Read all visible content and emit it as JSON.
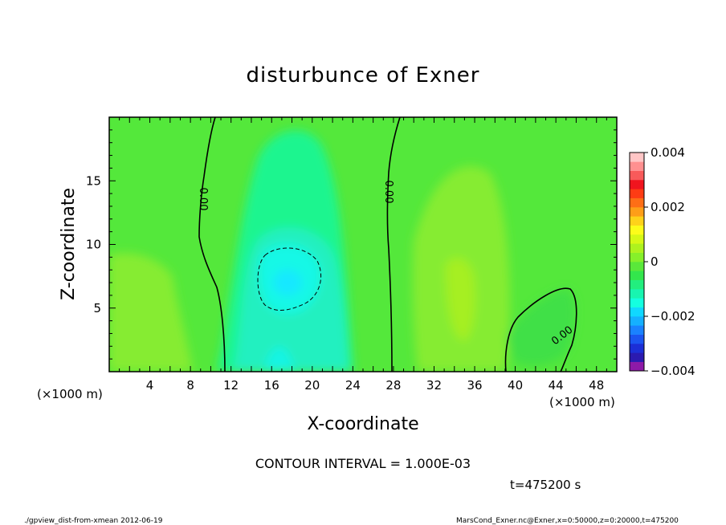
{
  "chart_data": {
    "type": "heatmap",
    "title": "disturbunce of Exner",
    "xlabel": "X-coordinate",
    "ylabel": "Z-coordinate",
    "x_unit_left": "(×1000 m)",
    "x_unit_right": "(×1000 m)",
    "xlim": [
      0,
      50
    ],
    "ylim": [
      0,
      20
    ],
    "x_ticks": [
      4,
      8,
      12,
      16,
      20,
      24,
      28,
      32,
      36,
      40,
      44,
      48
    ],
    "y_ticks": [
      5,
      10,
      15
    ],
    "colorbar": {
      "range": [
        -0.004,
        0.004
      ],
      "tick_labels": [
        "0.004",
        "0.002",
        "0",
        "−0.002",
        "−0.004"
      ],
      "tick_values": [
        0.004,
        0.002,
        0,
        -0.002,
        -0.004
      ],
      "colors": [
        "#8e1aa8",
        "#2b1ab0",
        "#1c2fd6",
        "#1b55f0",
        "#1a82ff",
        "#15b0ff",
        "#10d8ff",
        "#14ffe0",
        "#18f5b0",
        "#22ee7e",
        "#33e64c",
        "#5ae83a",
        "#86f02a",
        "#aef21e",
        "#d6f816",
        "#fcfc1a",
        "#fed21a",
        "#fe9e18",
        "#fe6e16",
        "#fe3c14",
        "#f0141e",
        "#f85a5a",
        "#ff9090",
        "#ffc6c6"
      ]
    },
    "contour_labels": [
      "0.00",
      "0.00",
      "0.00"
    ],
    "contour_interval_text": "CONTOUR INTERVAL = 1.000E-03",
    "time_text": "t=475200 s",
    "footer_left": "./gpview_dist-from-xmean  2012-06-19",
    "footer_right": "MarsCond_Exner.nc@Exner,x=0:50000,z=0:20000,t=475200",
    "grid": false,
    "legend": "colorbar-right"
  }
}
